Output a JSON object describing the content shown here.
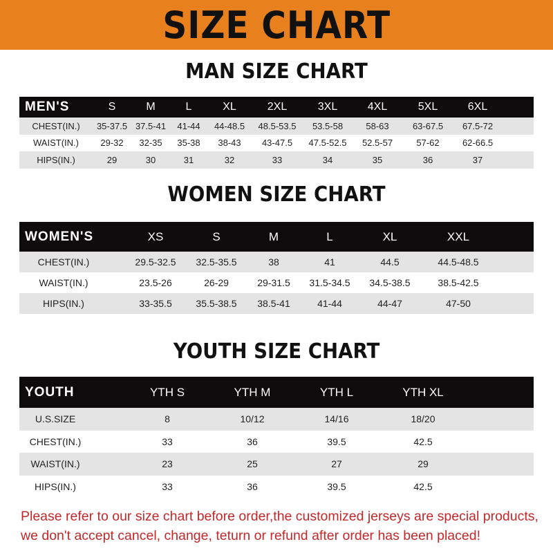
{
  "banner_title": "SIZE CHART",
  "men": {
    "title": "MAN SIZE CHART",
    "header": [
      "MEN'S",
      "S",
      "M",
      "L",
      "XL",
      "2XL",
      "3XL",
      "4XL",
      "5XL",
      "6XL"
    ],
    "rows": [
      [
        "CHEST(IN.)",
        "35-37.5",
        "37.5-41",
        "41-44",
        "44-48.5",
        "48.5-53.5",
        "53.5-58",
        "58-63",
        "63-67.5",
        "67.5-72"
      ],
      [
        "WAIST(IN.)",
        "29-32",
        "32-35",
        "35-38",
        "38-43",
        "43-47.5",
        "47.5-52.5",
        "52.5-57",
        "57-62",
        "62-66.5"
      ],
      [
        "HIPS(IN.)",
        "29",
        "30",
        "31",
        "32",
        "33",
        "34",
        "35",
        "36",
        "37"
      ]
    ]
  },
  "women": {
    "title": "WOMEN SIZE CHART",
    "header": [
      "WOMEN'S",
      "XS",
      "S",
      "M",
      "L",
      "XL",
      "XXL"
    ],
    "rows": [
      [
        "CHEST(IN.)",
        "29.5-32.5",
        "32.5-35.5",
        "38",
        "41",
        "44.5",
        "44.5-48.5"
      ],
      [
        "WAIST(IN.)",
        "23.5-26",
        "26-29",
        "29-31.5",
        "31.5-34.5",
        "34.5-38.5",
        "38.5-42.5"
      ],
      [
        "HIPS(IN.)",
        "33-35.5",
        "35.5-38.5",
        "38.5-41",
        "41-44",
        "44-47",
        "47-50"
      ]
    ]
  },
  "youth": {
    "title": "YOUTH SIZE CHART",
    "header": [
      "YOUTH",
      "YTH S",
      "YTH M",
      "YTH L",
      "YTH XL"
    ],
    "rows": [
      [
        "U.S.SIZE",
        "8",
        "10/12",
        "14/16",
        "18/20"
      ],
      [
        "CHEST(IN.)",
        "33",
        "36",
        "39.5",
        "42.5"
      ],
      [
        "WAIST(IN.)",
        "23",
        "25",
        "27",
        "29"
      ],
      [
        "HIPS(IN.)",
        "33",
        "36",
        "39.5",
        "42.5"
      ]
    ]
  },
  "notice": [
    "Please refer to our size chart before order,the customized jerseys are special products,",
    "we don't accept cancel, change, teturn or refund after order has been placed!"
  ],
  "colors": {
    "banner": "#e8801e",
    "header_row": "#0d0b0b",
    "stripe": "#e4e4e4",
    "notice": "#c0282a"
  }
}
